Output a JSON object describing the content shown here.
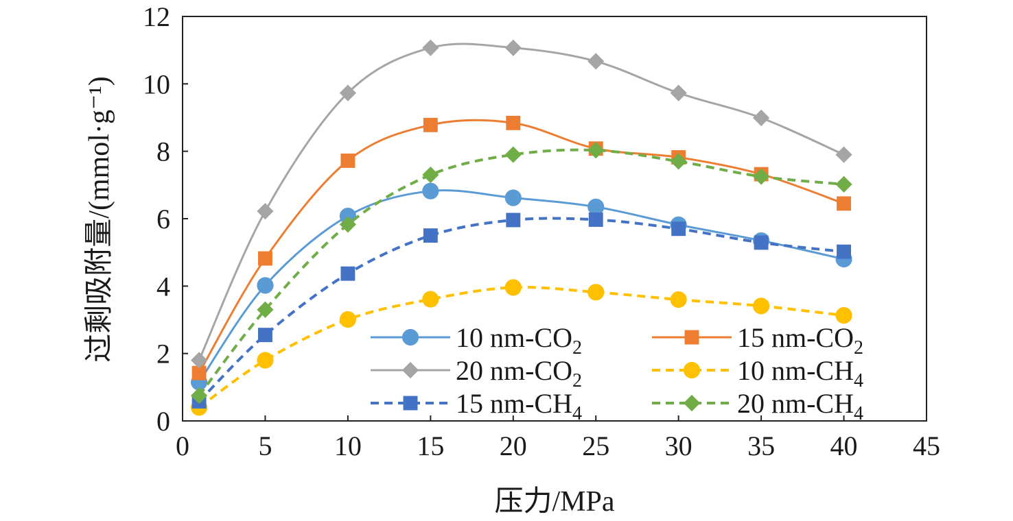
{
  "chart_data": {
    "type": "line",
    "title": "",
    "xlabel": "压力/MPa",
    "ylabel": "过剩吸附量/(mmol·g⁻¹)",
    "xlim": [
      0,
      45
    ],
    "ylim": [
      0,
      12
    ],
    "xticks": [
      0,
      5,
      10,
      15,
      20,
      25,
      30,
      35,
      40,
      45
    ],
    "yticks": [
      0,
      2,
      4,
      6,
      8,
      10,
      12
    ],
    "grid": false,
    "legend_position": "bottom-right",
    "x": [
      1,
      5,
      10,
      15,
      20,
      25,
      30,
      35,
      40
    ],
    "series": [
      {
        "name": "10 nm-CO2",
        "name_base": "10 nm-CO",
        "name_sub": "2",
        "color": "#5b9bd5",
        "dashed": false,
        "marker": "circle",
        "values": [
          1.15,
          4.02,
          6.08,
          6.82,
          6.62,
          6.35,
          5.82,
          5.35,
          4.8
        ]
      },
      {
        "name": "15 nm-CO2",
        "name_base": "15 nm-CO",
        "name_sub": "2",
        "color": "#ed7d31",
        "dashed": false,
        "marker": "square",
        "values": [
          1.42,
          4.82,
          7.72,
          8.78,
          8.84,
          8.08,
          7.82,
          7.32,
          6.45
        ]
      },
      {
        "name": "20 nm-CO2",
        "name_base": "20 nm-CO",
        "name_sub": "2",
        "color": "#a5a5a5",
        "dashed": false,
        "marker": "diamond",
        "values": [
          1.8,
          6.22,
          9.73,
          11.07,
          11.07,
          10.67,
          9.73,
          8.99,
          7.9
        ]
      },
      {
        "name": "10 nm-CH4",
        "name_base": "10 nm-CH",
        "name_sub": "4",
        "color": "#ffc000",
        "dashed": true,
        "marker": "circle",
        "values": [
          0.4,
          1.8,
          3.01,
          3.61,
          3.96,
          3.82,
          3.6,
          3.41,
          3.13
        ]
      },
      {
        "name": "15 nm-CH4",
        "name_base": "15 nm-CH",
        "name_sub": "4",
        "color": "#4472c4",
        "dashed": true,
        "marker": "square",
        "values": [
          0.58,
          2.55,
          4.37,
          5.5,
          5.96,
          5.97,
          5.7,
          5.29,
          5.02
        ]
      },
      {
        "name": "20 nm-CH4",
        "name_base": "20 nm-CH",
        "name_sub": "4",
        "color": "#70ad47",
        "dashed": true,
        "marker": "diamond",
        "values": [
          0.75,
          3.3,
          5.83,
          7.3,
          7.9,
          8.03,
          7.7,
          7.25,
          7.02
        ]
      }
    ],
    "legend_order": [
      0,
      1,
      2,
      3,
      4,
      5
    ]
  }
}
